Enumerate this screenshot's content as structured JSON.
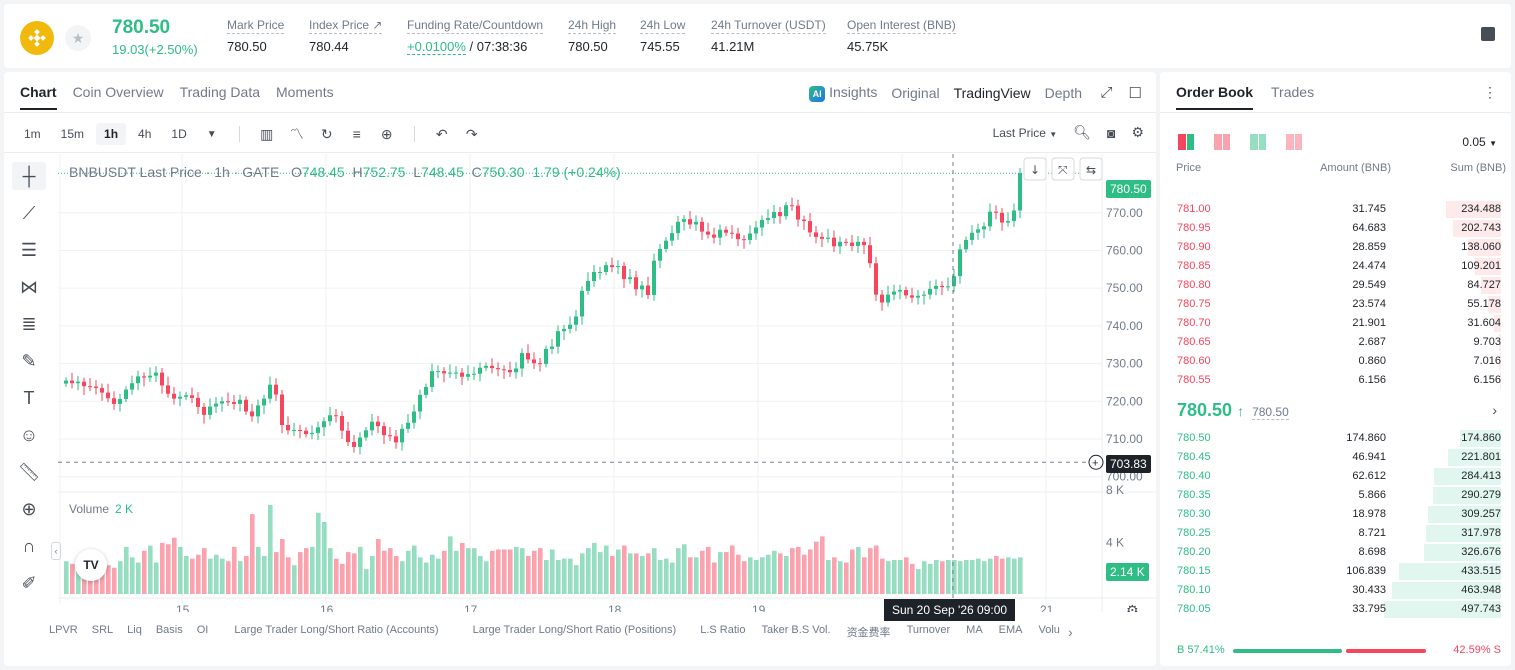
{
  "header": {
    "last_price": "780.50",
    "change": "19.03(+2.50%)",
    "stats": [
      {
        "label": "Mark Price",
        "value": "780.50"
      },
      {
        "label": "Index Price ↗",
        "value": "780.44"
      },
      {
        "label": "Funding Rate/Countdown",
        "value_green": "+0.0100%",
        "value": " / 07:38:36"
      },
      {
        "label": "24h High",
        "value": "780.50"
      },
      {
        "label": "24h Low",
        "value": "745.55"
      },
      {
        "label": "24h Turnover (USDT)",
        "value": "41.21M"
      },
      {
        "label": "Open Interest (BNB)",
        "value": "45.75K"
      }
    ]
  },
  "chart_tabs": [
    "Chart",
    "Coin Overview",
    "Trading Data",
    "Moments"
  ],
  "view_tabs": {
    "insights": "Insights",
    "original": "Original",
    "tradingview": "TradingView",
    "depth": "Depth",
    "ai": "AI"
  },
  "timeframes": [
    "1m",
    "15m",
    "1h",
    "4h",
    "1D"
  ],
  "active_timeframe": "1h",
  "last_price_select": "Last Price",
  "legend": {
    "symbol": "BNBUSDT Last Price · 1h · GATE",
    "o_label": "O",
    "o": "748.45",
    "h_label": "H",
    "h": "752.75",
    "l_label": "L",
    "l": "748.45",
    "c_label": "C",
    "c": "750.30",
    "chg": "1.79 (+0.24%)"
  },
  "volume_legend": {
    "label": "Volume",
    "value": "2 K"
  },
  "price_tags": {
    "last": "780.50",
    "crosshair": "703.83",
    "volume": "2.14 K"
  },
  "crosshair_time": "Sun 20 Sep '26   09:00",
  "tv_logo": "TV",
  "indicators": [
    "LPVR",
    "SRL",
    "Liq",
    "Basis",
    "OI",
    "Large Trader Long/Short Ratio (Accounts)",
    "Large Trader Long/Short Ratio (Positions)",
    "L.S Ratio",
    "Taker B.S Vol.",
    "资金费率",
    "Turnover",
    "MA",
    "EMA",
    "Volu"
  ],
  "chart_data": {
    "type": "candlestick",
    "x_ticks": [
      "15",
      "16",
      "17",
      "18",
      "19",
      "21"
    ],
    "y_ticks": [
      "770.00",
      "760.00",
      "750.00",
      "740.00",
      "730.00",
      "720.00",
      "710.00",
      "700.00"
    ],
    "y_range": [
      697,
      784
    ],
    "volume_ticks": [
      "8 K",
      "4 K"
    ],
    "volume_range": [
      0,
      8400
    ],
    "last_price": 780.5,
    "crosshair_price": 703.83,
    "closes": [
      725.5,
      724.8,
      725.2,
      724.0,
      723.9,
      723.5,
      722.3,
      720.8,
      719.3,
      720.6,
      723.1,
      724.8,
      726.6,
      726.3,
      726.8,
      727.6,
      724.2,
      722.0,
      720.7,
      721.2,
      721.6,
      720.9,
      718.5,
      716.4,
      718.6,
      719.4,
      720.0,
      719.8,
      719.3,
      720.4,
      717.3,
      716.0,
      718.9,
      720.7,
      724.4,
      721.8,
      713.7,
      712.3,
      712.4,
      712.2,
      711.3,
      711.6,
      713.1,
      714.7,
      716.3,
      716.1,
      712.2,
      709.2,
      707.9,
      710.4,
      712.3,
      714.6,
      713.4,
      711.0,
      710.7,
      709.1,
      712.7,
      714.3,
      717.3,
      721.7,
      723.8,
      728.0,
      728.0,
      727.4,
      727.6,
      727.6,
      726.5,
      727.2,
      727.3,
      728.9,
      729.4,
      728.8,
      728.5,
      728.3,
      727.7,
      728.7,
      732.8,
      731.1,
      730.1,
      729.9,
      733.9,
      734.5,
      738.6,
      739.2,
      740.3,
      742.5,
      749.3,
      751.9,
      754.3,
      754.3,
      756.1,
      755.6,
      755.9,
      752.4,
      752.9,
      749.7,
      750.7,
      748.2,
      757.3,
      760.4,
      762.6,
      764.6,
      767.6,
      768.3,
      766.9,
      767.6,
      765.0,
      764.2,
      763.4,
      765.5,
      764.7,
      764.5,
      763.0,
      762.8,
      764.5,
      766.1,
      768.1,
      768.6,
      770.2,
      769.1,
      772.0,
      771.9,
      768.2,
      767.8,
      764.8,
      763.6,
      763.1,
      763.4,
      761.1,
      762.3,
      762.1,
      761.2,
      762.3,
      761.4,
      756.6,
      748.3,
      746.2,
      748.3,
      749.1,
      749.5,
      748.1,
      747.5,
      748.0,
      748.3,
      749.8,
      750.6,
      750.3,
      750.5,
      753.2,
      760.3,
      762.8,
      764.7,
      765.6,
      766.4,
      770.3,
      770.0,
      767.4,
      767.8,
      770.6,
      780.5
    ],
    "volumes": [
      2500,
      2300,
      2700,
      2100,
      2400,
      2900,
      2600,
      2200,
      2000,
      2500,
      3600,
      2800,
      2400,
      3300,
      3700,
      2400,
      3900,
      3800,
      4300,
      3600,
      2900,
      2700,
      3000,
      3500,
      2700,
      3000,
      2700,
      2500,
      3600,
      2500,
      2900,
      6100,
      3600,
      2900,
      6800,
      3200,
      4200,
      2800,
      2200,
      3200,
      3500,
      3600,
      6200,
      5500,
      3500,
      2700,
      2300,
      3200,
      3100,
      3600,
      1900,
      2900,
      4200,
      3300,
      3500,
      2900,
      2500,
      3300,
      3700,
      2800,
      2400,
      3000,
      2700,
      3300,
      4400,
      3300,
      3900,
      3500,
      3500,
      2900,
      2500,
      3300,
      3400,
      3400,
      3400,
      3600,
      3500,
      2900,
      3300,
      3500,
      2600,
      3400,
      2600,
      2700,
      2700,
      2200,
      3100,
      3500,
      3900,
      3200,
      3700,
      2900,
      3400,
      3700,
      3100,
      3100,
      2900,
      3100,
      3500,
      2600,
      2700,
      2400,
      3500,
      3800,
      2800,
      2800,
      3300,
      3600,
      2400,
      3200,
      3200,
      3700,
      3000,
      2500,
      2800,
      2600,
      2800,
      3000,
      3300,
      3100,
      2900,
      3500,
      3600,
      3000,
      3400,
      4000,
      4400,
      2600,
      2800,
      2500,
      2400,
      3400,
      3600,
      2800,
      3500,
      3700,
      2700,
      2500,
      2600,
      2600,
      2800,
      2300,
      1900,
      2500,
      2300,
      2600,
      2500,
      2600,
      2600,
      2500,
      2600,
      2600,
      2700,
      2500,
      2700,
      2900,
      2700,
      2800,
      2700,
      2800,
      2600,
      2800
    ]
  },
  "orderbook": {
    "tabs": [
      "Order Book",
      "Trades"
    ],
    "step": "0.05",
    "columns": [
      "Price",
      "Amount (BNB)",
      "Sum (BNB)"
    ],
    "asks": [
      {
        "price": "781.00",
        "amount": "31.745",
        "sum": "234.488",
        "depth": 0.47
      },
      {
        "price": "780.95",
        "amount": "64.683",
        "sum": "202.743",
        "depth": 0.41
      },
      {
        "price": "780.90",
        "amount": "28.859",
        "sum": "138.060",
        "depth": 0.28
      },
      {
        "price": "780.85",
        "amount": "24.474",
        "sum": "109.201",
        "depth": 0.22
      },
      {
        "price": "780.80",
        "amount": "29.549",
        "sum": "84.727",
        "depth": 0.17
      },
      {
        "price": "780.75",
        "amount": "23.574",
        "sum": "55.178",
        "depth": 0.11
      },
      {
        "price": "780.70",
        "amount": "21.901",
        "sum": "31.604",
        "depth": 0.064
      },
      {
        "price": "780.65",
        "amount": "2.687",
        "sum": "9.703",
        "depth": 0.02
      },
      {
        "price": "780.60",
        "amount": "0.860",
        "sum": "7.016",
        "depth": 0.014
      },
      {
        "price": "780.55",
        "amount": "6.156",
        "sum": "6.156",
        "depth": 0.012
      }
    ],
    "mid": {
      "price": "780.50",
      "arrow": "↑",
      "mark": "780.50"
    },
    "bids": [
      {
        "price": "780.50",
        "amount": "174.860",
        "sum": "174.860",
        "depth": 0.35
      },
      {
        "price": "780.45",
        "amount": "46.941",
        "sum": "221.801",
        "depth": 0.45
      },
      {
        "price": "780.40",
        "amount": "62.612",
        "sum": "284.413",
        "depth": 0.57
      },
      {
        "price": "780.35",
        "amount": "5.866",
        "sum": "290.279",
        "depth": 0.58
      },
      {
        "price": "780.30",
        "amount": "18.978",
        "sum": "309.257",
        "depth": 0.62
      },
      {
        "price": "780.25",
        "amount": "8.721",
        "sum": "317.978",
        "depth": 0.64
      },
      {
        "price": "780.20",
        "amount": "8.698",
        "sum": "326.676",
        "depth": 0.66
      },
      {
        "price": "780.15",
        "amount": "106.839",
        "sum": "433.515",
        "depth": 0.87
      },
      {
        "price": "780.10",
        "amount": "30.433",
        "sum": "463.948",
        "depth": 0.93
      },
      {
        "price": "780.05",
        "amount": "33.795",
        "sum": "497.743",
        "depth": 1.0
      }
    ],
    "buy_ratio": "B 57.41%",
    "sell_ratio": "42.59% S",
    "buy_fraction": 0.5741
  },
  "colors": {
    "up": "#2ebd85",
    "down": "#f6465d",
    "brand": "#f0b90b"
  }
}
